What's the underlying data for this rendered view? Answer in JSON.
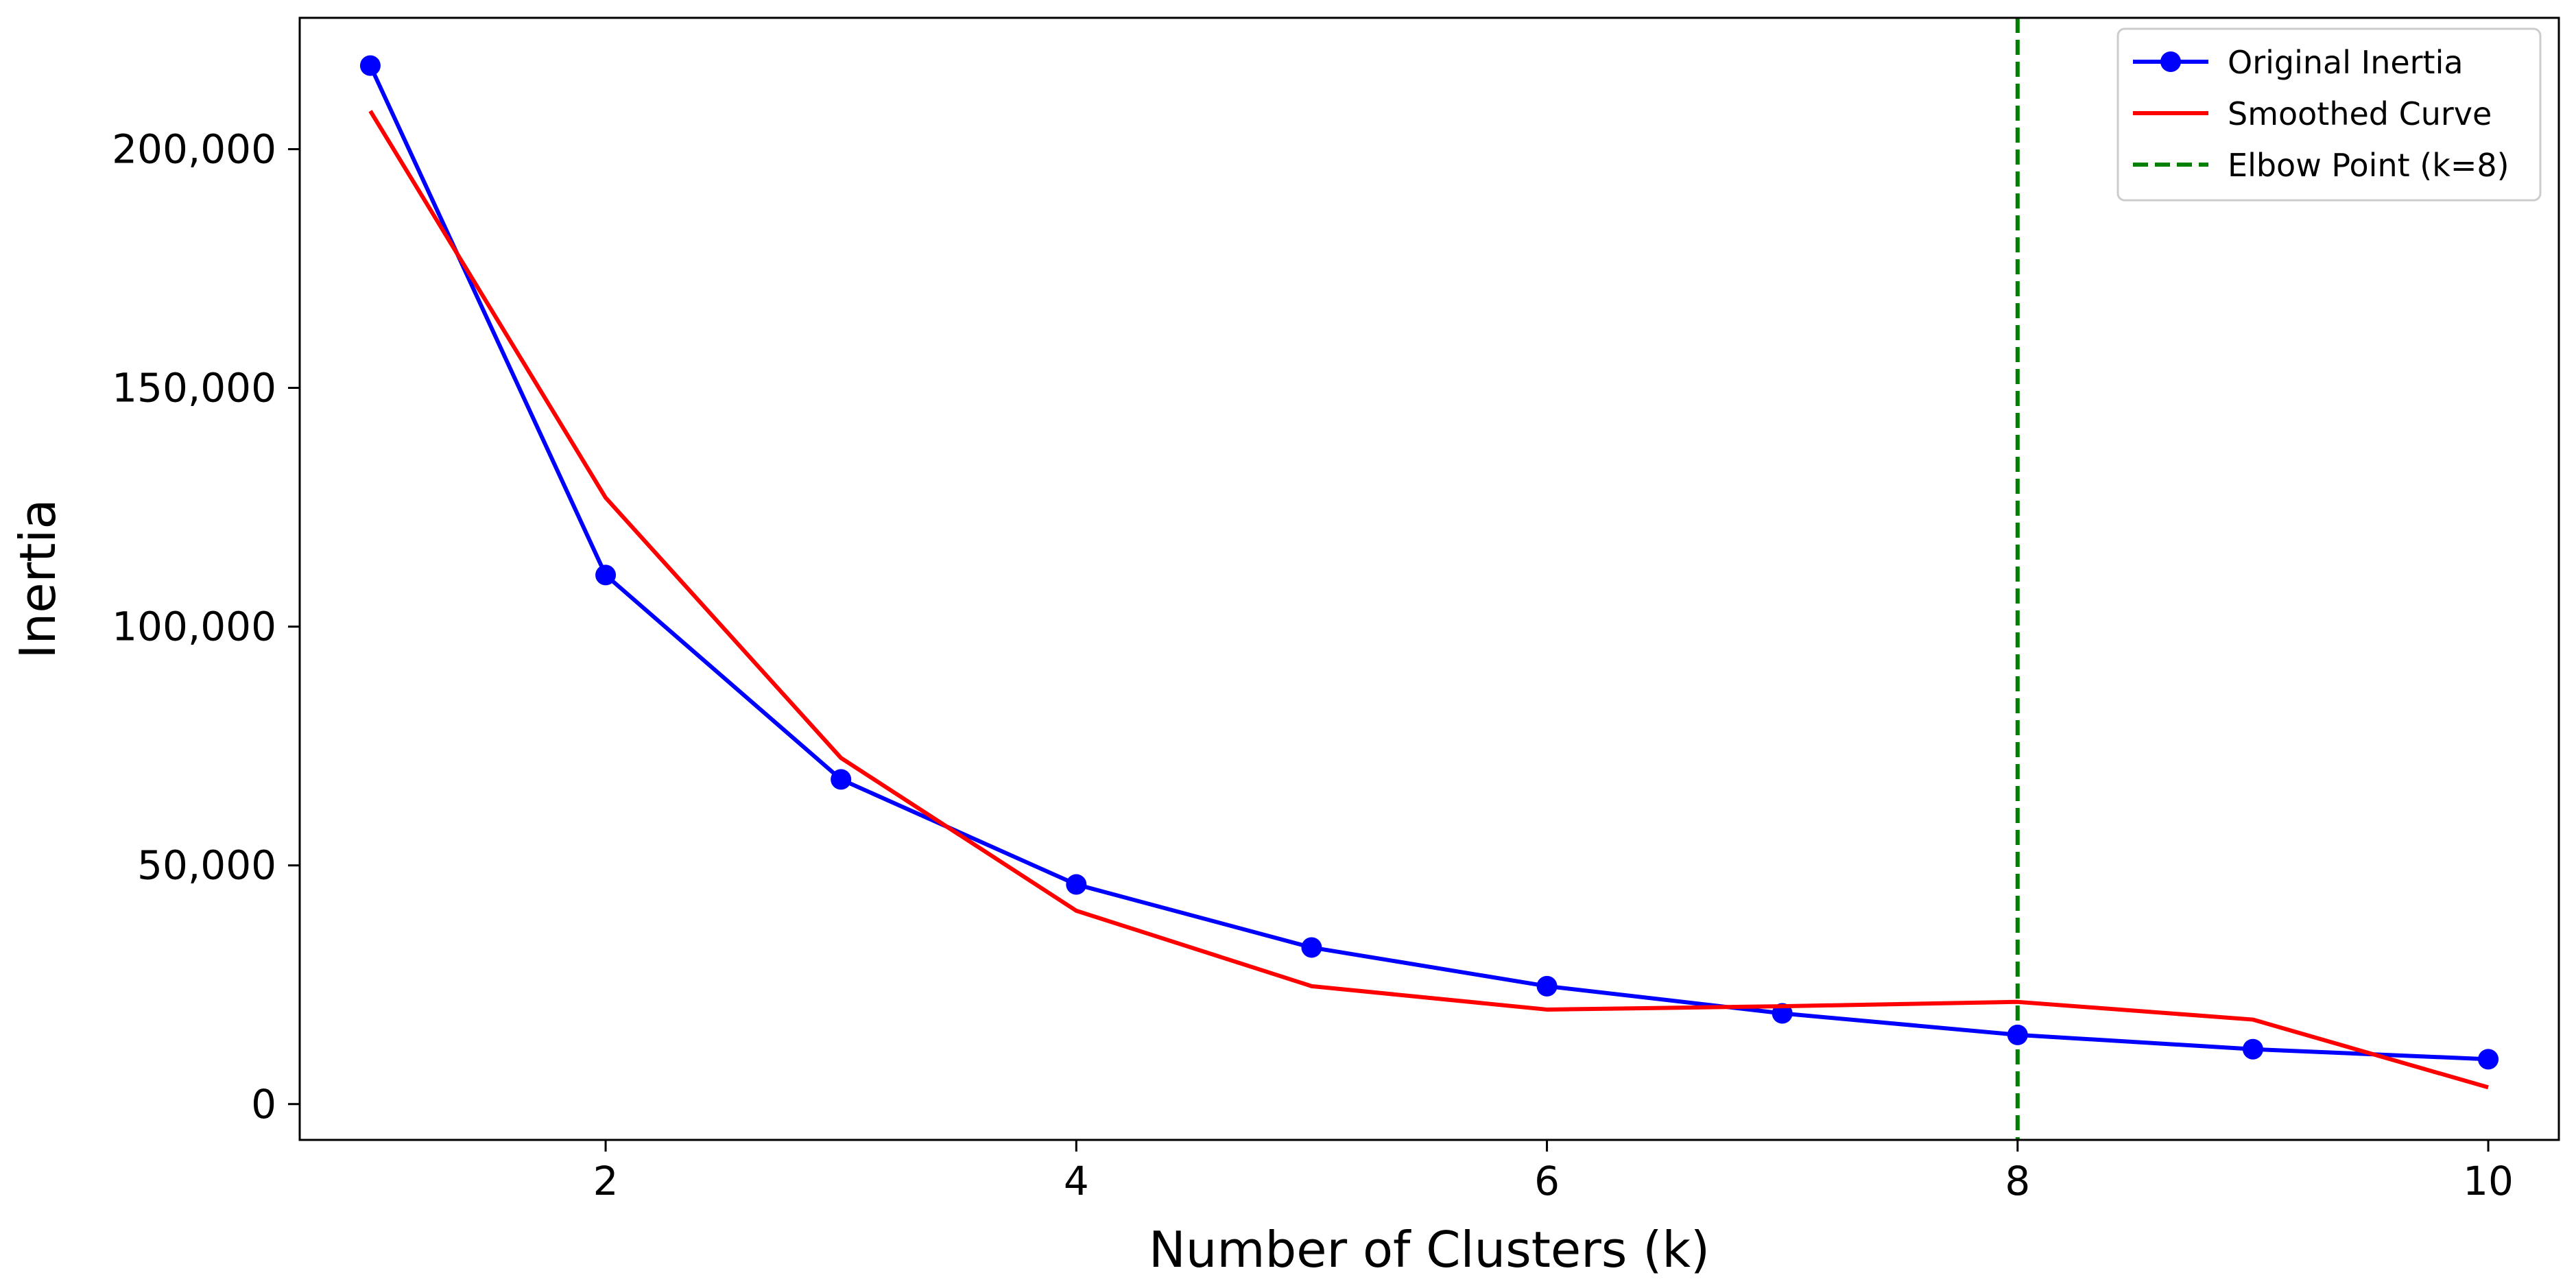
{
  "chart_data": {
    "type": "line",
    "title": "",
    "xlabel": "Number of Clusters (k)",
    "ylabel": "Inertia",
    "xlim": [
      0.7,
      10.3
    ],
    "ylim": [
      -7500,
      227500
    ],
    "xticks": [
      {
        "value": 2,
        "label": "2"
      },
      {
        "value": 4,
        "label": "4"
      },
      {
        "value": 6,
        "label": "6"
      },
      {
        "value": 8,
        "label": "8"
      },
      {
        "value": 10,
        "label": "10"
      }
    ],
    "yticks": [
      {
        "value": 0,
        "label": "0"
      },
      {
        "value": 50000,
        "label": "50,000"
      },
      {
        "value": 100000,
        "label": "100,000"
      },
      {
        "value": 150000,
        "label": "150,000"
      },
      {
        "value": 200000,
        "label": "200,000"
      }
    ],
    "grid": false,
    "legend_position": "top-right",
    "series": [
      {
        "name": "Original Inertia",
        "color": "#0000ff",
        "marker": "circle",
        "x": [
          1,
          2,
          3,
          4,
          5,
          6,
          7,
          8,
          9,
          10
        ],
        "y": [
          217500,
          110800,
          68000,
          46000,
          32800,
          24700,
          19000,
          14500,
          11500,
          9400
        ]
      },
      {
        "name": "Smoothed Curve",
        "color": "#ff0000",
        "marker": "none",
        "x": [
          1,
          2,
          3,
          4,
          5,
          6,
          7,
          8,
          9,
          10
        ],
        "y": [
          208000,
          127000,
          72500,
          40500,
          24700,
          19800,
          20500,
          21400,
          17700,
          3500
        ]
      }
    ],
    "reference_lines": [
      {
        "name": "Elbow Point (k=8)",
        "orientation": "vertical",
        "x": 8,
        "color": "#008000",
        "style": "dashed"
      }
    ]
  }
}
